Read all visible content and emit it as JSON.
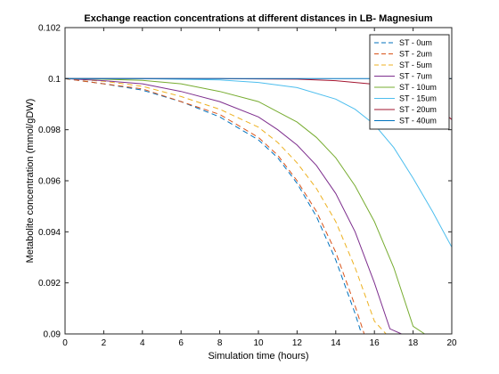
{
  "chart_data": {
    "type": "line",
    "title": "Exchange reaction concentrations at different distances in LB- Magnesium",
    "xlabel": "Simulation time (hours)",
    "ylabel": "Metabolite concentration (mmol/gDW)",
    "xlim": [
      0,
      20
    ],
    "ylim": [
      0.09,
      0.102
    ],
    "xticks": [
      0,
      2,
      4,
      6,
      8,
      10,
      12,
      14,
      16,
      18,
      20
    ],
    "yticks": [
      0.09,
      0.092,
      0.094,
      0.096,
      0.098,
      0.1,
      0.102
    ],
    "ytick_labels": [
      "0.09",
      "0.092",
      "0.094",
      "0.096",
      "0.098",
      "0.1",
      "0.102"
    ],
    "grid": false,
    "legend_position": "top-right",
    "series": [
      {
        "name": "ST - 0um",
        "color": "#0072BD",
        "dash": true,
        "x": [
          0,
          2,
          4,
          6,
          8,
          10,
          11,
          12,
          13,
          14,
          15,
          15.5,
          15.8
        ],
        "y": [
          0.1,
          0.0998,
          0.09955,
          0.0991,
          0.0985,
          0.0976,
          0.0969,
          0.0959,
          0.0946,
          0.0929,
          0.0908,
          0.0896,
          0.09
        ]
      },
      {
        "name": "ST - 2um",
        "color": "#D95319",
        "dash": true,
        "x": [
          0,
          2,
          4,
          6,
          8,
          10,
          11,
          12,
          13,
          14,
          15,
          15.6,
          16
        ],
        "y": [
          0.1,
          0.0998,
          0.0996,
          0.0991,
          0.0986,
          0.0977,
          0.097,
          0.096,
          0.0948,
          0.0932,
          0.0911,
          0.0897,
          0.09
        ]
      },
      {
        "name": "ST - 5um",
        "color": "#EDB120",
        "dash": true,
        "x": [
          0,
          2,
          4,
          6,
          8,
          10,
          11,
          12,
          13,
          14,
          15,
          16,
          16.6,
          17
        ],
        "y": [
          0.1,
          0.0999,
          0.0997,
          0.0993,
          0.0988,
          0.0981,
          0.0975,
          0.0967,
          0.0957,
          0.0944,
          0.0926,
          0.0905,
          0.09,
          0.09
        ]
      },
      {
        "name": "ST - 7um",
        "color": "#7E2F8E",
        "dash": false,
        "x": [
          0,
          2,
          4,
          6,
          8,
          10,
          11,
          12,
          13,
          14,
          15,
          16,
          16.8,
          17.4,
          20
        ],
        "y": [
          0.1,
          0.09992,
          0.0998,
          0.0995,
          0.0991,
          0.0985,
          0.098,
          0.0974,
          0.0966,
          0.0955,
          0.094,
          0.092,
          0.0902,
          0.09,
          0.09
        ]
      },
      {
        "name": "ST - 10um",
        "color": "#77AC30",
        "dash": false,
        "x": [
          0,
          2,
          4,
          6,
          8,
          10,
          12,
          13,
          14,
          15,
          16,
          17,
          18,
          18.6,
          20
        ],
        "y": [
          0.1,
          0.09998,
          0.09993,
          0.0998,
          0.0995,
          0.0991,
          0.0983,
          0.0977,
          0.0969,
          0.0958,
          0.0944,
          0.0926,
          0.0903,
          0.09,
          0.09
        ]
      },
      {
        "name": "ST - 15um",
        "color": "#4DBEEE",
        "dash": false,
        "x": [
          0,
          4,
          8,
          10,
          12,
          14,
          15,
          16,
          17,
          18,
          19,
          20
        ],
        "y": [
          0.1,
          0.1,
          0.09995,
          0.09985,
          0.09965,
          0.0992,
          0.0988,
          0.0982,
          0.0973,
          0.0961,
          0.0948,
          0.0934
        ]
      },
      {
        "name": "ST - 20um",
        "color": "#A2142F",
        "dash": false,
        "x": [
          0,
          8,
          12,
          14,
          16,
          17,
          18,
          19,
          20
        ],
        "y": [
          0.1,
          0.1,
          0.09998,
          0.09992,
          0.09978,
          0.09965,
          0.0994,
          0.099,
          0.0984
        ]
      },
      {
        "name": "ST - 40um",
        "color": "#0072BD",
        "dash": false,
        "x": [
          0,
          20
        ],
        "y": [
          0.1,
          0.1
        ]
      }
    ]
  }
}
